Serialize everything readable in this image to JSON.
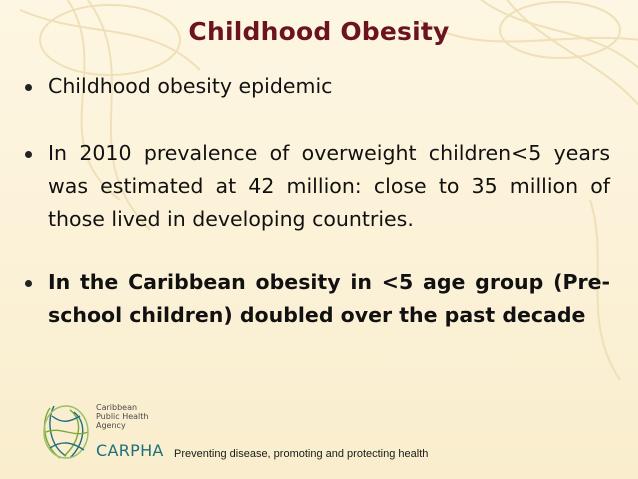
{
  "slide": {
    "title": "Childhood Obesity",
    "bullets": [
      {
        "text": "Childhood obesity epidemic"
      },
      {
        "text": "In 2010 prevalence of overweight children<5 years was estimated at 42 million: close to 35 million of those lived in developing countries."
      },
      {
        "text": "In the Caribbean obesity in <5 age group (Pre-school children) doubled over the past decade"
      }
    ]
  },
  "footer": {
    "logo_lines": [
      "Caribbean",
      "Public Health",
      "Agency"
    ],
    "logo_acronym": "CARPHA",
    "tagline": "Preventing disease,  promoting and protecting health"
  },
  "colors": {
    "title": "#6b1420",
    "background": "#fbf3dc",
    "logo_teal": "#1f6f7a",
    "logo_green": "#7aa83c"
  }
}
